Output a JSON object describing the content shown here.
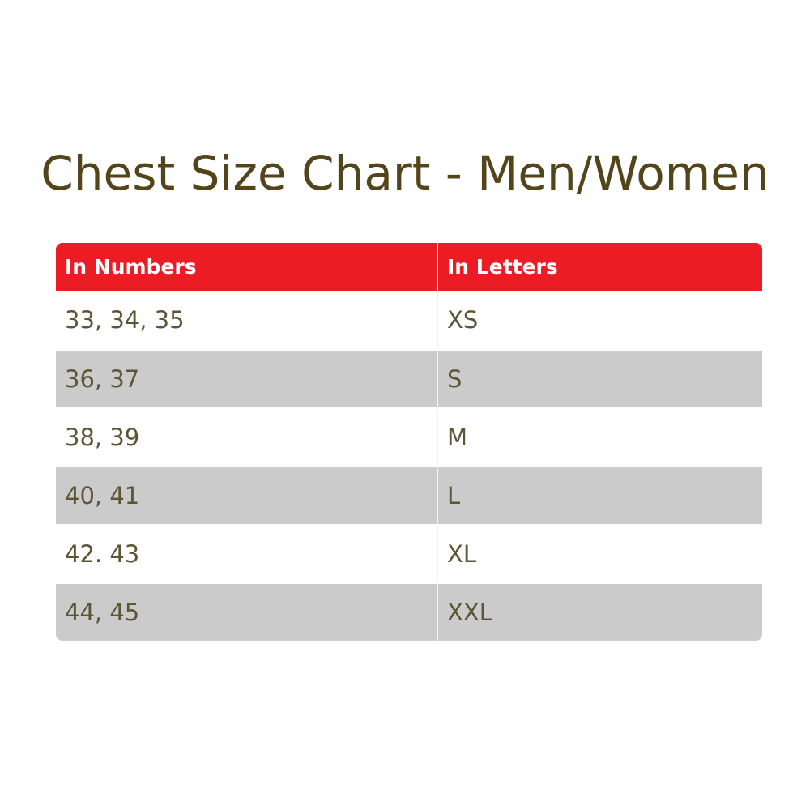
{
  "title": "Chest Size Chart - Men/Women",
  "colors": {
    "header": "#ec1c24",
    "shaded_row": "#cbcbcb",
    "title": "#54441a",
    "text": "#5c5535"
  },
  "table": {
    "headers": [
      "In Numbers",
      "In Letters"
    ],
    "rows": [
      [
        "33, 34, 35",
        "XS"
      ],
      [
        "36, 37",
        "S"
      ],
      [
        "38, 39",
        "M"
      ],
      [
        "40, 41",
        "L"
      ],
      [
        "42. 43",
        "XL"
      ],
      [
        "44, 45",
        "XXL"
      ]
    ]
  }
}
